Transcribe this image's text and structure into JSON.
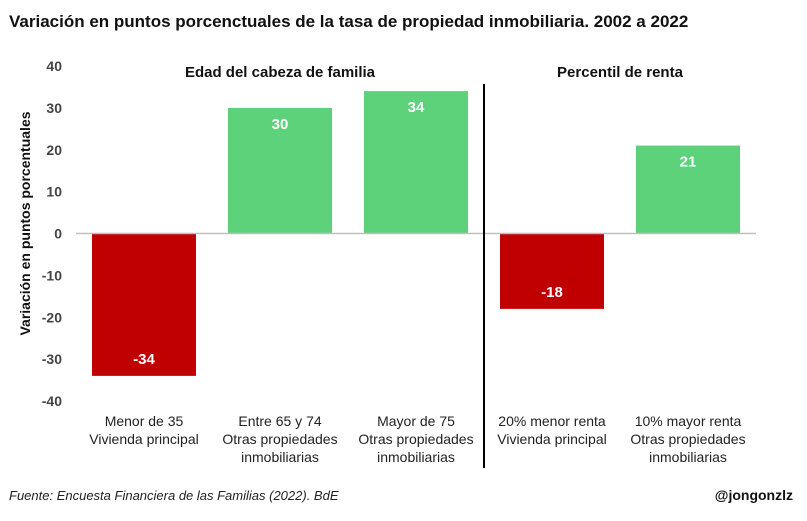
{
  "title": "Variación en puntos porcenctuales de la tasa de propiedad inmobiliaria. 2002 a 2022",
  "source": "Fuente: Encuesta Financiera de las Familias (2022). BdE",
  "handle": "@jongonzlz",
  "colors": {
    "positive": "#5dd27b",
    "negative": "#c00000",
    "divider": "#000000",
    "zero_line": "#bfbfbf"
  },
  "chart_data": {
    "type": "bar",
    "ylabel": "Variación en puntos porcentuales",
    "ylim": [
      -40,
      40
    ],
    "yticks": [
      40,
      30,
      20,
      10,
      0,
      -10,
      -20,
      -30,
      -40
    ],
    "grid": false,
    "groups": [
      {
        "label": "Edad del cabeza de familia",
        "categories": [
          0,
          1,
          2
        ]
      },
      {
        "label": "Percentil de renta",
        "categories": [
          3,
          4
        ]
      }
    ],
    "categories": [
      [
        "Menor de 35",
        "Vivienda principal"
      ],
      [
        "Entre 65 y 74",
        "Otras propiedades",
        "inmobiliarias"
      ],
      [
        "Mayor de 75",
        "Otras propiedades",
        "inmobiliarias"
      ],
      [
        "20% menor renta",
        "Vivienda principal"
      ],
      [
        "10% mayor renta",
        "Otras propiedades",
        "inmobiliarias"
      ]
    ],
    "values": [
      -34,
      30,
      34,
      -18,
      21
    ],
    "data_labels": [
      "-34",
      "30",
      "34",
      "-18",
      "21"
    ]
  }
}
